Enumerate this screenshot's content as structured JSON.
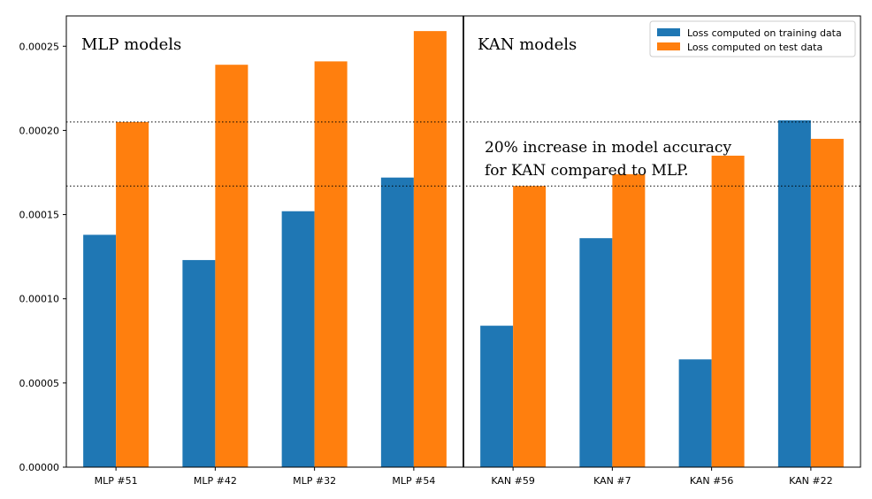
{
  "chart_data": {
    "type": "bar",
    "title": "",
    "xlabel": "",
    "ylabel": "",
    "categories": [
      "MLP #51",
      "MLP #42",
      "MLP #32",
      "MLP #54",
      "KAN #59",
      "KAN #7",
      "KAN #56",
      "KAN #22"
    ],
    "series": [
      {
        "name": "Loss computed on training data",
        "color": "#1f77b4",
        "values": [
          0.000138,
          0.000123,
          0.000152,
          0.000172,
          8.4e-05,
          0.000136,
          6.4e-05,
          0.000206
        ]
      },
      {
        "name": "Loss computed on test data",
        "color": "#ff7f0e",
        "values": [
          0.000205,
          0.000239,
          0.000241,
          0.000259,
          0.000167,
          0.000174,
          0.000185,
          0.000195
        ]
      }
    ],
    "ylim": [
      0,
      0.000268
    ],
    "yticks": [
      0.0,
      5e-05,
      0.0001,
      0.00015,
      0.0002,
      0.00025
    ],
    "ytick_labels": [
      "0.00000",
      "0.00005",
      "0.00010",
      "0.00015",
      "0.00020",
      "0.00025"
    ],
    "grid": false,
    "legend_position": "top-right",
    "reference_lines": [
      0.000205,
      0.000167
    ],
    "group_labels": [
      "MLP models",
      "KAN models"
    ],
    "annotation": [
      "20% increase in model accuracy",
      "for KAN compared to MLP."
    ]
  }
}
